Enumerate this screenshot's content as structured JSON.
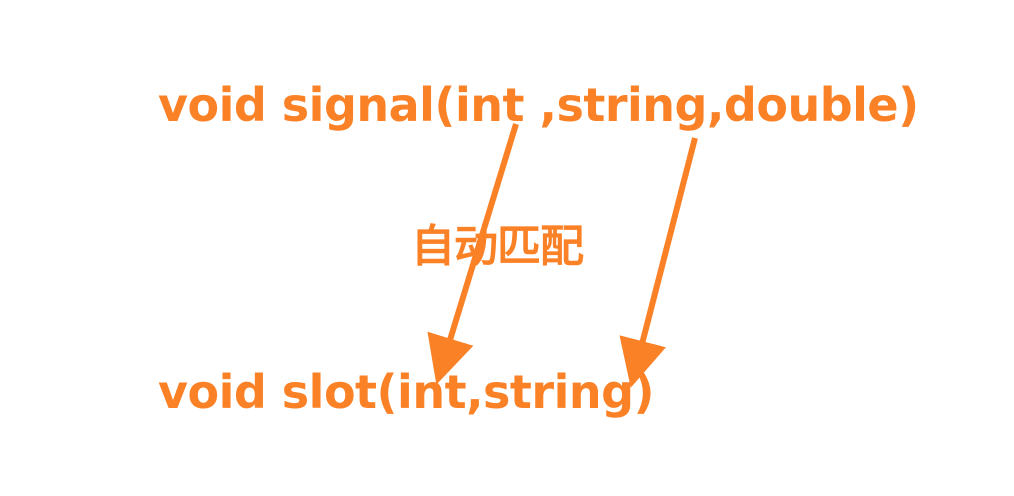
{
  "diagram": {
    "signal_text": "void signal(int ,string,double)",
    "slot_text": "void slot(int,string)",
    "match_label": "自动匹配",
    "accent_color": "#fb8127",
    "arrows": [
      {
        "name": "int-match-arrow",
        "from": "int",
        "to": "int"
      },
      {
        "name": "string-match-arrow",
        "from": "string",
        "to": "string"
      }
    ]
  }
}
